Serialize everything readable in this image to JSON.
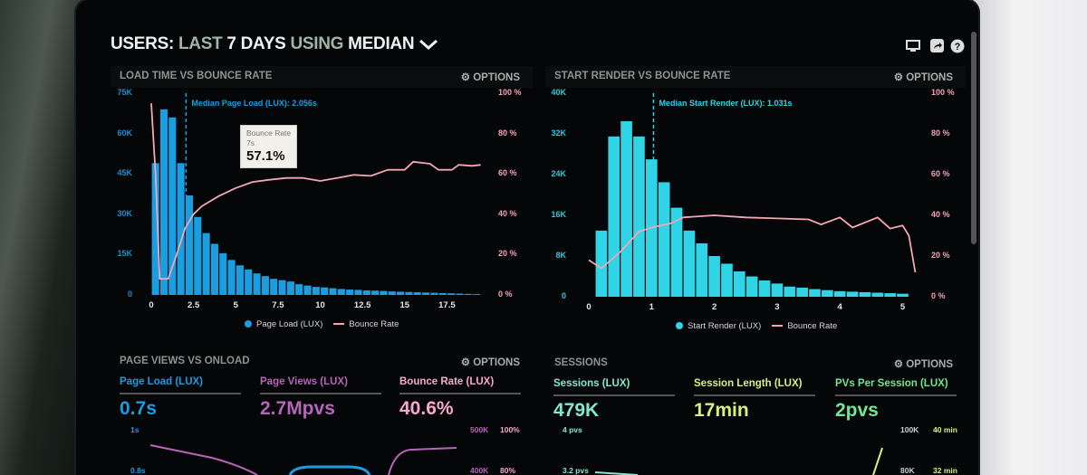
{
  "header": {
    "title_parts": [
      "USERS:",
      "LAST",
      "7 DAYS",
      "USING",
      "MEDIAN"
    ],
    "icons": [
      "monitor-icon",
      "share-icon",
      "help-icon"
    ]
  },
  "options_label": "OPTIONS",
  "colors": {
    "page_load": "#1a9ee0",
    "start_render": "#2fd4e6",
    "bounce": "#f4a6b6",
    "page_views": "#b665b8",
    "bounce_stat": "#f6a9cc",
    "sessions": "#82e8cc",
    "session_length": "#d6f27c",
    "pvs": "#70e890"
  },
  "chart_data": [
    {
      "type": "bar+line",
      "title": "LOAD TIME VS BOUNCE RATE",
      "annotation": "Median Page Load (LUX): 2.056s",
      "median": 2.056,
      "x_ticks": [
        "0",
        "2.5",
        "5",
        "7.5",
        "10",
        "12.5",
        "15",
        "17.5"
      ],
      "xlim": [
        0,
        19.5
      ],
      "y_ticks": [
        "0",
        "15K",
        "30K",
        "45K",
        "60K",
        "75K"
      ],
      "ylim": [
        0,
        75000
      ],
      "y2_ticks": [
        "0 %",
        "20 %",
        "40 %",
        "60 %",
        "80 %",
        "100 %"
      ],
      "y2lim": [
        0,
        100
      ],
      "bar_width": 0.5,
      "series": [
        {
          "name": "Page Load (LUX)",
          "type": "bar",
          "x": [
            0,
            0.5,
            1,
            1.5,
            2,
            2.5,
            3,
            3.5,
            4,
            4.5,
            5,
            5.5,
            6,
            6.5,
            7,
            7.5,
            8,
            8.5,
            9,
            9.5,
            10,
            10.5,
            11,
            11.5,
            12,
            12.5,
            13,
            13.5,
            14,
            14.5,
            15,
            15.5,
            16,
            16.5,
            17,
            17.5,
            18,
            18.5,
            19
          ],
          "values": [
            49000,
            69000,
            66000,
            49000,
            37000,
            29000,
            23000,
            19000,
            15500,
            13000,
            11000,
            9500,
            8000,
            7000,
            6000,
            5500,
            5000,
            4000,
            3500,
            3000,
            2800,
            2500,
            2200,
            2000,
            1900,
            1700,
            1600,
            1500,
            1300,
            1200,
            1100,
            1000,
            900,
            800,
            700,
            600,
            500,
            400,
            300
          ]
        },
        {
          "name": "Bounce Rate",
          "type": "line",
          "x": [
            0,
            0.25,
            0.5,
            1,
            1.5,
            2,
            2.5,
            3,
            4,
            5,
            6,
            7,
            8,
            9,
            10,
            11,
            12,
            13,
            14,
            15,
            15.5,
            16.5,
            17,
            17.8,
            18.2,
            19,
            19.5
          ],
          "values": [
            95,
            60,
            8,
            8,
            20,
            33,
            40,
            44,
            49,
            53,
            56,
            57.1,
            58,
            58,
            56.5,
            58,
            59.5,
            59,
            62,
            62,
            66,
            65,
            62,
            62,
            64.5,
            64,
            64.5
          ]
        }
      ],
      "tooltip": {
        "label": "Bounce Rate",
        "x": "7s",
        "value": "57.1%"
      }
    },
    {
      "type": "bar+line",
      "title": "START RENDER VS BOUNCE RATE",
      "annotation": "Median Start Render (LUX): 1.031s",
      "median": 1.031,
      "x_ticks": [
        "0",
        "1",
        "2",
        "3",
        "4",
        "5"
      ],
      "xlim": [
        0,
        5.25
      ],
      "y_ticks": [
        "0",
        "8K",
        "16K",
        "24K",
        "32K",
        "40K"
      ],
      "ylim": [
        0,
        40000
      ],
      "y2_ticks": [
        "0 %",
        "20 %",
        "40 %",
        "60 %",
        "80 %",
        "100 %"
      ],
      "y2lim": [
        0,
        100
      ],
      "bar_width": 0.2,
      "series": [
        {
          "name": "Start Render (LUX)",
          "type": "bar",
          "x": [
            0.1,
            0.3,
            0.5,
            0.7,
            0.9,
            1.1,
            1.3,
            1.5,
            1.7,
            1.9,
            2.1,
            2.3,
            2.5,
            2.7,
            2.9,
            3.1,
            3.3,
            3.5,
            3.7,
            3.9,
            4.1,
            4.3,
            4.5,
            4.7,
            4.9
          ],
          "values": [
            13000,
            31500,
            34500,
            31500,
            27000,
            22500,
            17500,
            13000,
            10500,
            8000,
            6500,
            5000,
            4000,
            3200,
            2600,
            2000,
            1800,
            1500,
            1300,
            1100,
            1000,
            900,
            800,
            700,
            600
          ]
        },
        {
          "name": "Bounce Rate",
          "type": "line",
          "x": [
            0,
            0.2,
            0.5,
            0.8,
            1,
            1.3,
            1.5,
            2,
            2.5,
            3,
            3.5,
            3.7,
            4,
            4.2,
            4.6,
            4.8,
            5,
            5.1,
            5.2
          ],
          "values": [
            18,
            14,
            22,
            32,
            34,
            36,
            39,
            40,
            39,
            38.5,
            38,
            35.5,
            39,
            34,
            39,
            33.5,
            35,
            30,
            12
          ]
        }
      ]
    }
  ],
  "panels": {
    "pageviews": {
      "title": "PAGE VIEWS VS ONLOAD",
      "stats": [
        {
          "label": "Page Load (LUX)",
          "value": "0.7s"
        },
        {
          "label": "Page Views (LUX)",
          "value": "2.7Mpvs"
        },
        {
          "label": "Bounce Rate (LUX)",
          "value": "40.6%"
        }
      ],
      "left_ticks": [
        "1s",
        "0.8s"
      ],
      "right_ticks_a": [
        "500K",
        "400K"
      ],
      "right_ticks_b": [
        "100%",
        "80%"
      ]
    },
    "sessions": {
      "title": "SESSIONS",
      "stats": [
        {
          "label": "Sessions (LUX)",
          "value": "479K"
        },
        {
          "label": "Session Length (LUX)",
          "value": "17min"
        },
        {
          "label": "PVs Per Session (LUX)",
          "value": "2pvs"
        }
      ],
      "left_ticks": [
        "4 pvs",
        "3.2 pvs"
      ],
      "right_ticks_a": [
        "100K",
        "80K"
      ],
      "right_ticks_b": [
        "40 min",
        "32 min"
      ]
    }
  }
}
